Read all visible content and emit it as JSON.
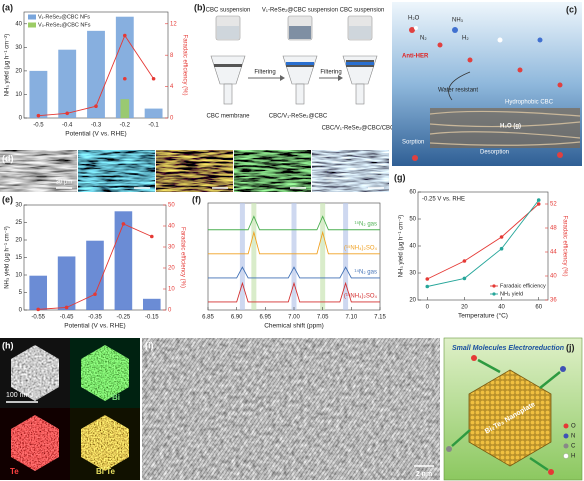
{
  "panel_labels": [
    "(a)",
    "(b)",
    "(c)",
    "(d)",
    "(e)",
    "(f)",
    "(g)",
    "(h)",
    "(i)",
    "(j)"
  ],
  "chart_data": [
    {
      "type": "bar",
      "categories": [
        "-0.5",
        "-0.4",
        "-0.3",
        "-0.2",
        "-0.1"
      ],
      "xlabel": "Potential (V vs. RHE)",
      "ylabel": "NH₃ yield (μg h⁻¹ cm⁻²)",
      "y2label": "Faradaic efficiency (%)",
      "ylim": [
        0,
        45
      ],
      "yticks": [
        0,
        10,
        20,
        30,
        40
      ],
      "y2lim": [
        0,
        13.5
      ],
      "y2ticks": [
        0,
        4,
        8,
        12
      ],
      "legend": "upper left",
      "markers": true,
      "series": [
        {
          "name": "V₁-ReSe₂@CBC NFs",
          "type": "bar",
          "color": "#7aa6dc",
          "values": [
            20,
            29,
            37,
            43,
            4
          ]
        },
        {
          "name": "V₀-ReSe₂@CBC NFs",
          "type": "bar",
          "color": "#9ccc65",
          "values": [
            null,
            null,
            null,
            8,
            null
          ]
        },
        {
          "type": "line",
          "axis": "y2",
          "color": "#e53935",
          "values": [
            0.3,
            0.6,
            1.5,
            10.5,
            5
          ]
        },
        {
          "type": "line",
          "axis": "y2",
          "color": "#e53935",
          "values": [
            null,
            null,
            null,
            5,
            null
          ]
        }
      ]
    },
    {
      "type": "bar",
      "categories": [
        "-0.55",
        "-0.45",
        "-0.35",
        "-0.25",
        "-0.15"
      ],
      "xlabel": "Potential (V vs. RHE)",
      "ylabel": "NH₃ yield (μg h⁻¹ cm⁻²)",
      "y2label": "Faradaic efficiency (%)",
      "ylim": [
        0,
        30
      ],
      "yticks": [
        0,
        5,
        10,
        15,
        20,
        25,
        30
      ],
      "y2lim": [
        0,
        50
      ],
      "y2ticks": [
        0,
        10,
        20,
        30,
        40,
        50
      ],
      "markers": true,
      "series": [
        {
          "type": "bar",
          "color": "#5b7fd0",
          "values": [
            9.8,
            15.3,
            19.8,
            28.2,
            3.2
          ]
        },
        {
          "type": "line",
          "axis": "y2",
          "color": "#e53935",
          "values": [
            0.3,
            1.2,
            7.5,
            41,
            35
          ]
        }
      ]
    },
    {
      "type": "line",
      "x": [
        6.85,
        6.86,
        6.87,
        6.88,
        6.89,
        6.9,
        6.91,
        6.92,
        6.93,
        6.94,
        6.95,
        6.96,
        6.97,
        6.98,
        6.99,
        7,
        7.01,
        7.02,
        7.03,
        7.04,
        7.05,
        7.06,
        7.07,
        7.08,
        7.09,
        7.1,
        7.11,
        7.12,
        7.13,
        7.14,
        7.15
      ],
      "xlabel": "Chemical shift (ppm)",
      "xlim": [
        6.85,
        7.15
      ],
      "xticks": [
        6.85,
        {
          "value": 6.9,
          "label": "6.90"
        },
        6.95,
        {
          "value": 7,
          "label": "7.00"
        },
        7.05,
        {
          "value": 7.1,
          "label": "7.10"
        },
        7.15
      ],
      "ylim": [
        0,
        4
      ],
      "series_labels": "inline",
      "bands": [
        {
          "x": 6.91,
          "color": "#b9c8ea"
        },
        {
          "x": 6.93,
          "color": "#c9e4b4"
        },
        {
          "x": 7,
          "color": "#b9c8ea"
        },
        {
          "x": 7.05,
          "color": "#c9e4b4"
        },
        {
          "x": 7.09,
          "color": "#b9c8ea"
        }
      ],
      "series": [
        {
          "name": "¹⁵N₂ gas",
          "color": "#4caf50",
          "values": [
            3,
            3,
            3,
            3,
            3,
            3,
            3,
            3,
            3.5,
            3,
            3,
            3,
            3,
            3,
            3,
            3,
            3,
            3,
            3,
            3,
            3.5,
            3,
            3,
            3,
            3,
            3,
            3,
            3,
            3,
            3,
            3
          ]
        },
        {
          "name": "(¹⁵NH₄)₂SO₄",
          "color": "#f0a020",
          "values": [
            2.1,
            2.1,
            2.1,
            2.1,
            2.1,
            2.1,
            2.1,
            2.1,
            2.9,
            2.1,
            2.1,
            2.1,
            2.1,
            2.1,
            2.1,
            2.1,
            2.1,
            2.1,
            2.1,
            2.1,
            2.9,
            2.1,
            2.1,
            2.1,
            2.1,
            2.1,
            2.1,
            2.1,
            2.1,
            2.1,
            2.1
          ]
        },
        {
          "name": "¹⁴N₂ gas",
          "color": "#3f6fb5",
          "values": [
            1.2,
            1.2,
            1.2,
            1.2,
            1.2,
            1.2,
            1.6,
            1.2,
            1.2,
            1.2,
            1.2,
            1.2,
            1.2,
            1.2,
            1.2,
            1.6,
            1.2,
            1.2,
            1.2,
            1.2,
            1.2,
            1.2,
            1.2,
            1.2,
            1.6,
            1.2,
            1.2,
            1.2,
            1.2,
            1.2,
            1.2
          ]
        },
        {
          "name": "(¹⁴NH₄)₂SO₄",
          "color": "#d32f2f",
          "values": [
            0.3,
            0.3,
            0.3,
            0.3,
            0.3,
            0.3,
            1,
            0.3,
            0.3,
            0.3,
            0.3,
            0.3,
            0.3,
            0.3,
            0.3,
            1,
            0.3,
            0.3,
            0.3,
            0.3,
            0.3,
            0.3,
            0.3,
            0.3,
            1,
            0.3,
            0.3,
            0.3,
            0.3,
            0.3,
            0.3
          ]
        }
      ]
    },
    {
      "type": "line",
      "x": [
        0,
        20,
        40,
        60
      ],
      "xlabel": "Temperature (°C)",
      "ylabel": "NH₃ yield (μg h⁻¹ cm⁻²)",
      "y2label": "Faradaic efficiency (%)",
      "annotation": "-0.25 V vs. RHE",
      "xlim": [
        -5,
        65
      ],
      "xticks": [
        0,
        20,
        40,
        60
      ],
      "ylim": [
        20,
        60
      ],
      "yticks": [
        20,
        30,
        40,
        50,
        60
      ],
      "y2lim": [
        36,
        54
      ],
      "y2ticks": [
        36,
        40,
        44,
        48,
        52
      ],
      "legend": "lower right",
      "markers": true,
      "series": [
        {
          "name": "Faradaic efficiency",
          "type": "line",
          "axis": "y2",
          "color": "#e53935",
          "values": [
            39.5,
            42.5,
            46.5,
            52
          ]
        },
        {
          "name": "NH₃ yield",
          "type": "line",
          "color": "#26a69a",
          "values": [
            25,
            28,
            39,
            57
          ]
        }
      ]
    }
  ],
  "schematic_b": {
    "top_labels": [
      "CBC suspension",
      "V₁-ReSe₂@CBC suspension",
      "CBC suspension"
    ],
    "arrows": [
      "Filtering",
      "Filtering"
    ],
    "bottom_labels": [
      "CBC membrane",
      "CBC/V₁-ReSe₂@CBC",
      "CBC/V₁-ReSe₂@CBC/CBC"
    ]
  },
  "schematic_c": {
    "molecules": [
      "H₂O",
      "NH₃",
      "N₂",
      "H₂"
    ],
    "labels": [
      "Anti-HER",
      "Water resistant",
      "Hydrophobic CBC",
      "H₂O (g)",
      "Sorption",
      "Desorption"
    ]
  },
  "micrograph_d": {
    "scale_bar": "30 μm"
  },
  "micrograph_h": {
    "scale_bar": "100 nm",
    "maps": [
      "Bi",
      "Te",
      "Bi Te"
    ]
  },
  "micrograph_i": {
    "scale_bar": "2 nm"
  },
  "schematic_j": {
    "title": "Small Molecules Electroreduction",
    "center": "Bi₂Te₃ Nanoplate",
    "legend": [
      "O",
      "N",
      "C",
      "H"
    ]
  }
}
